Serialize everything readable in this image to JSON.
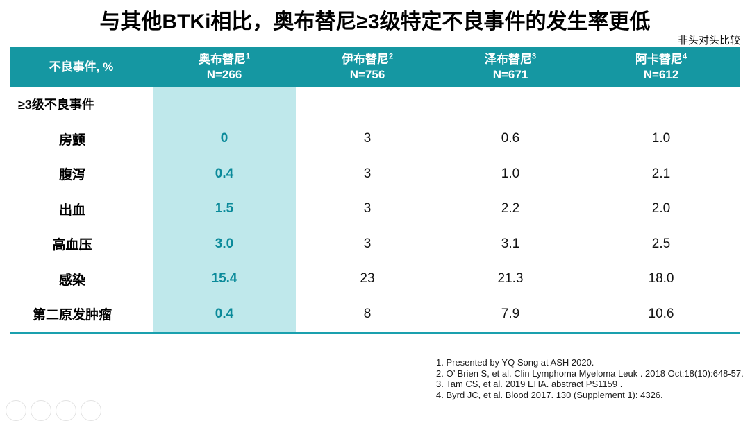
{
  "title": "与其他BTKi相比，奥布替尼≥3级特定不良事件的发生率更低",
  "note_top_right": "非头对头比较",
  "colors": {
    "header_teal": "#1597A2",
    "highlight_column": "#BFE8EB",
    "highlight_value_text": "#0A8A9A",
    "bottom_line": "#1AA0AE"
  },
  "table": {
    "row_header_label": "不良事件, %",
    "columns": [
      {
        "name": "奥布替尼",
        "ref": "1",
        "n": "N=266"
      },
      {
        "name": "伊布替尼",
        "ref": "2",
        "n": "N=756"
      },
      {
        "name": "泽布替尼",
        "ref": "3",
        "n": "N=671"
      },
      {
        "name": "阿卡替尼",
        "ref": "4",
        "n": "N=612"
      }
    ],
    "section_header": "≥3级不良事件",
    "rows": [
      {
        "label": "房颤",
        "values": [
          "0",
          "3",
          "0.6",
          "1.0"
        ]
      },
      {
        "label": "腹泻",
        "values": [
          "0.4",
          "3",
          "1.0",
          "2.1"
        ]
      },
      {
        "label": "出血",
        "values": [
          "1.5",
          "3",
          "2.2",
          "2.0"
        ]
      },
      {
        "label": "高血压",
        "values": [
          "3.0",
          "3",
          "3.1",
          "2.5"
        ]
      },
      {
        "label": "感染",
        "values": [
          "15.4",
          "23",
          "21.3",
          "18.0"
        ]
      },
      {
        "label": "第二原发肿瘤",
        "values": [
          "0.4",
          "8",
          "7.9",
          "10.6"
        ]
      }
    ]
  },
  "footnotes": [
    "1. Presented by YQ Song at ASH 2020.",
    "2. O’ Brien S, et al. Clin Lymphoma Myeloma Leuk . 2018 Oct;18(10):648-57.",
    "3. Tam CS, et al. 2019 EHA. abstract PS1159 .",
    "4. Byrd JC, et al. Blood 2017. 130 (Supplement 1): 4326."
  ],
  "chart_data": {
    "type": "table",
    "title": "与其他BTKi相比，奥布替尼≥3级特定不良事件的发生率更低",
    "note": "非头对头比较",
    "columns": [
      "不良事件, %",
      "奥布替尼 N=266",
      "伊布替尼 N=756",
      "泽布替尼 N=671",
      "阿卡替尼 N=612"
    ],
    "section": "≥3级不良事件",
    "rows": [
      [
        "房颤",
        0,
        3,
        0.6,
        1.0
      ],
      [
        "腹泻",
        0.4,
        3,
        1.0,
        2.1
      ],
      [
        "出血",
        1.5,
        3,
        2.2,
        2.0
      ],
      [
        "高血压",
        3.0,
        3,
        3.1,
        2.5
      ],
      [
        "感染",
        15.4,
        23,
        21.3,
        18.0
      ],
      [
        "第二原发肿瘤",
        0.4,
        8,
        7.9,
        10.6
      ]
    ]
  }
}
